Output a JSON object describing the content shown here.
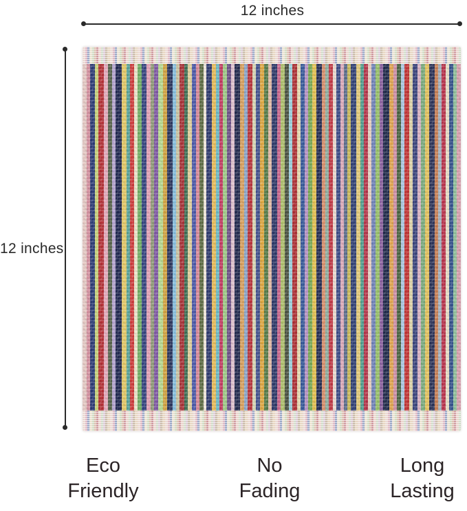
{
  "colors": {
    "background": "#ffffff",
    "annotation": "#2a2a2a",
    "caption_text": "#2b2426",
    "hem_base": "#e6d2ca"
  },
  "dimensions": {
    "top_label": "12 inches",
    "left_label": "12 inches"
  },
  "features": [
    {
      "line1": "Eco",
      "line2": "Friendly"
    },
    {
      "line1": "No",
      "line2": "Fading"
    },
    {
      "line1": "Long",
      "line2": "Lasting"
    }
  ],
  "towel": {
    "description": "multicolor vertical striped terry washcloth",
    "body_stripes": [
      [
        "#e5c9c4",
        6
      ],
      [
        "#d48f9e",
        5
      ],
      [
        "#2b3a75",
        7
      ],
      [
        "#c7d17a",
        5
      ],
      [
        "#b52f35",
        8
      ],
      [
        "#e5a9bb",
        6
      ],
      [
        "#55624a",
        6
      ],
      [
        "#b3a3cf",
        5
      ],
      [
        "#1f2750",
        9
      ],
      [
        "#e3c866",
        7
      ],
      [
        "#57a398",
        5
      ],
      [
        "#cf3a3a",
        6
      ],
      [
        "#ece3c8",
        5
      ],
      [
        "#6fae62",
        6
      ],
      [
        "#33427e",
        7
      ],
      [
        "#e2a1b5",
        6
      ],
      [
        "#8f9a77",
        5
      ],
      [
        "#7e57a3",
        6
      ],
      [
        "#b6d98f",
        7
      ],
      [
        "#d2a23e",
        6
      ],
      [
        "#29345c",
        8
      ],
      [
        "#86bede",
        5
      ],
      [
        "#c8c3a2",
        5
      ],
      [
        "#a83136",
        7
      ],
      [
        "#3c6e53",
        5
      ],
      [
        "#e0cf9a",
        6
      ],
      [
        "#4a57a8",
        6
      ],
      [
        "#d8899a",
        5
      ],
      [
        "#5d6b43",
        6
      ],
      [
        "#efe6da",
        4
      ],
      [
        "#2e3a6e",
        8
      ],
      [
        "#e8bc59",
        6
      ],
      [
        "#69b9c4",
        5
      ],
      [
        "#c23a62",
        5
      ],
      [
        "#9fca86",
        6
      ],
      [
        "#6b4f86",
        6
      ],
      [
        "#dfc1ce",
        5
      ],
      [
        "#22294e",
        8
      ],
      [
        "#d9a05c",
        6
      ],
      [
        "#8aa5c9",
        5
      ],
      [
        "#b8323a",
        7
      ],
      [
        "#d7d6b4",
        5
      ],
      [
        "#41508e",
        6
      ],
      [
        "#e0a73f",
        6
      ],
      [
        "#547a46",
        6
      ],
      [
        "#e2b9a4",
        5
      ],
      [
        "#2c3768",
        8
      ],
      [
        "#c9658c",
        5
      ],
      [
        "#aebf6b",
        6
      ],
      [
        "#474f3e",
        6
      ],
      [
        "#9bd0dd",
        5
      ],
      [
        "#ae2f34",
        7
      ],
      [
        "#e6d8b0",
        5
      ],
      [
        "#35589a",
        6
      ],
      [
        "#b592c4",
        5
      ],
      [
        "#77a953",
        6
      ],
      [
        "#e3c04f",
        6
      ],
      [
        "#232c52",
        8
      ],
      [
        "#d98f6c",
        5
      ],
      [
        "#8fae9f",
        5
      ],
      [
        "#c23744",
        6
      ],
      [
        "#e9d9ce",
        5
      ],
      [
        "#3b4a86",
        6
      ],
      [
        "#dca9b8",
        5
      ],
      [
        "#5a6b8a",
        5
      ],
      [
        "#c8b858",
        5
      ],
      [
        "#2f3f74",
        8
      ],
      [
        "#e2c978",
        6
      ],
      [
        "#4f9e8e",
        5
      ],
      [
        "#b53348",
        6
      ],
      [
        "#e7cfc0",
        5
      ],
      [
        "#6f82b8",
        6
      ],
      [
        "#97c068",
        6
      ],
      [
        "#8a5f9e",
        5
      ],
      [
        "#1f294a",
        9
      ],
      [
        "#e0a44e",
        6
      ],
      [
        "#cf8fa6",
        5
      ],
      [
        "#47623f",
        6
      ],
      [
        "#aac7e2",
        5
      ],
      [
        "#c23233",
        7
      ],
      [
        "#ded3a8",
        5
      ],
      [
        "#39437c",
        7
      ],
      [
        "#d8b1c2",
        5
      ],
      [
        "#79ab7c",
        6
      ],
      [
        "#e4c35c",
        6
      ],
      [
        "#2a3258",
        8
      ],
      [
        "#c77d52",
        5
      ],
      [
        "#a3b0bd",
        5
      ],
      [
        "#b8304a",
        6
      ],
      [
        "#e8ddc4",
        5
      ],
      [
        "#33508c",
        6
      ],
      [
        "#8fbf9a",
        5
      ],
      [
        "#d8a0ae",
        6
      ]
    ],
    "hem_stripes": [
      [
        "#e8d3cc",
        4
      ],
      [
        "#d9aebb",
        3
      ],
      [
        "#8e9cc0",
        3
      ],
      [
        "#e6ddc9",
        4
      ],
      [
        "#c9d6b9",
        3
      ],
      [
        "#d9b9a8",
        3
      ],
      [
        "#c98a92",
        3
      ],
      [
        "#e8cfc6",
        4
      ],
      [
        "#ccd8c2",
        3
      ],
      [
        "#d8c2d2",
        3
      ],
      [
        "#c3b39e",
        3
      ],
      [
        "#e3d0b9",
        4
      ]
    ]
  }
}
